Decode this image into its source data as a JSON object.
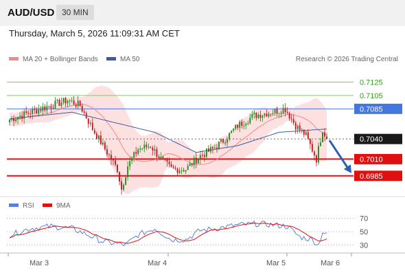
{
  "header": {
    "pair": "AUD/USD",
    "timeframe": "30 MIN",
    "datetime": "Thursday, March 5, 2026 11:09:31 AM CET"
  },
  "legend": {
    "ma20_label": "MA 20 + Bollinger Bands",
    "ma50_label": "MA 50",
    "research": "Research © 2026 Trading Central",
    "rsi_label": "RSI",
    "ma9_label": "9MA"
  },
  "colors": {
    "candle_up": "#1e8a1e",
    "candle_down": "#c0181c",
    "ma20": "#ef8a8a",
    "bollinger_fill": "#fde0e0",
    "ma50": "#3a5ba8",
    "resistance_green": "#7ecf5c",
    "pivot_blue": "#4477dd",
    "support_red": "#e01010",
    "arrow": "#2860b0",
    "rsi": "#5b7fdc",
    "rsi_ma": "#e01010"
  },
  "chart_data": [
    {
      "type": "candlestick",
      "title": "AUD/USD 30 MIN",
      "xlabel": "",
      "ylabel": "",
      "x_tick_labels": [
        "Mar 3",
        "Mar 4",
        "Mar 5",
        "Mar 6"
      ],
      "price_range": [
        0.6955,
        0.715
      ],
      "levels": [
        {
          "label": "0.7125",
          "value": 0.7125,
          "kind": "resistance"
        },
        {
          "label": "0.7105",
          "value": 0.7105,
          "kind": "resistance"
        },
        {
          "label": "0.7085",
          "value": 0.7085,
          "kind": "pivot"
        },
        {
          "label": "0.7040",
          "value": 0.704,
          "kind": "last"
        },
        {
          "label": "0.7010",
          "value": 0.701,
          "kind": "support"
        },
        {
          "label": "0.6985",
          "value": 0.6985,
          "kind": "support"
        }
      ],
      "forecast_arrow": {
        "from_price": 0.704,
        "to_price": 0.6985
      },
      "bars_count": 154,
      "close_anchors": [
        {
          "bar": 0,
          "close": 0.7069
        },
        {
          "bar": 8,
          "close": 0.7078
        },
        {
          "bar": 18,
          "close": 0.7088
        },
        {
          "bar": 28,
          "close": 0.7098
        },
        {
          "bar": 34,
          "close": 0.709
        },
        {
          "bar": 40,
          "close": 0.7055
        },
        {
          "bar": 46,
          "close": 0.7025
        },
        {
          "bar": 52,
          "close": 0.6995
        },
        {
          "bar": 54,
          "close": 0.6965
        },
        {
          "bar": 57,
          "close": 0.7
        },
        {
          "bar": 62,
          "close": 0.7025
        },
        {
          "bar": 68,
          "close": 0.703
        },
        {
          "bar": 73,
          "close": 0.701
        },
        {
          "bar": 78,
          "close": 0.6995
        },
        {
          "bar": 85,
          "close": 0.6995
        },
        {
          "bar": 92,
          "close": 0.7015
        },
        {
          "bar": 98,
          "close": 0.7025
        },
        {
          "bar": 104,
          "close": 0.704
        },
        {
          "bar": 110,
          "close": 0.706
        },
        {
          "bar": 118,
          "close": 0.7075
        },
        {
          "bar": 126,
          "close": 0.708
        },
        {
          "bar": 133,
          "close": 0.7085
        },
        {
          "bar": 138,
          "close": 0.706
        },
        {
          "bar": 143,
          "close": 0.7045
        },
        {
          "bar": 148,
          "close": 0.701
        },
        {
          "bar": 151,
          "close": 0.7055
        },
        {
          "bar": 153,
          "close": 0.704
        }
      ],
      "ma50_anchors": [
        {
          "bar": 0,
          "value": 0.707
        },
        {
          "bar": 30,
          "value": 0.708
        },
        {
          "bar": 50,
          "value": 0.7065
        },
        {
          "bar": 70,
          "value": 0.705
        },
        {
          "bar": 90,
          "value": 0.702
        },
        {
          "bar": 110,
          "value": 0.703
        },
        {
          "bar": 130,
          "value": 0.705
        },
        {
          "bar": 153,
          "value": 0.7055
        }
      ]
    },
    {
      "type": "line",
      "title": "RSI",
      "y_ticks": [
        70,
        50,
        30
      ],
      "ylim": [
        20,
        80
      ],
      "rsi_anchors": [
        {
          "bar": 0,
          "value": 45
        },
        {
          "bar": 10,
          "value": 55
        },
        {
          "bar": 20,
          "value": 58
        },
        {
          "bar": 30,
          "value": 55
        },
        {
          "bar": 38,
          "value": 45
        },
        {
          "bar": 45,
          "value": 35
        },
        {
          "bar": 52,
          "value": 32
        },
        {
          "bar": 56,
          "value": 30
        },
        {
          "bar": 62,
          "value": 45
        },
        {
          "bar": 70,
          "value": 55
        },
        {
          "bar": 78,
          "value": 38
        },
        {
          "bar": 85,
          "value": 38
        },
        {
          "bar": 92,
          "value": 52
        },
        {
          "bar": 100,
          "value": 55
        },
        {
          "bar": 110,
          "value": 60
        },
        {
          "bar": 120,
          "value": 62
        },
        {
          "bar": 128,
          "value": 60
        },
        {
          "bar": 134,
          "value": 58
        },
        {
          "bar": 140,
          "value": 42
        },
        {
          "bar": 146,
          "value": 38
        },
        {
          "bar": 149,
          "value": 30
        },
        {
          "bar": 151,
          "value": 50
        },
        {
          "bar": 153,
          "value": 45
        }
      ]
    }
  ]
}
